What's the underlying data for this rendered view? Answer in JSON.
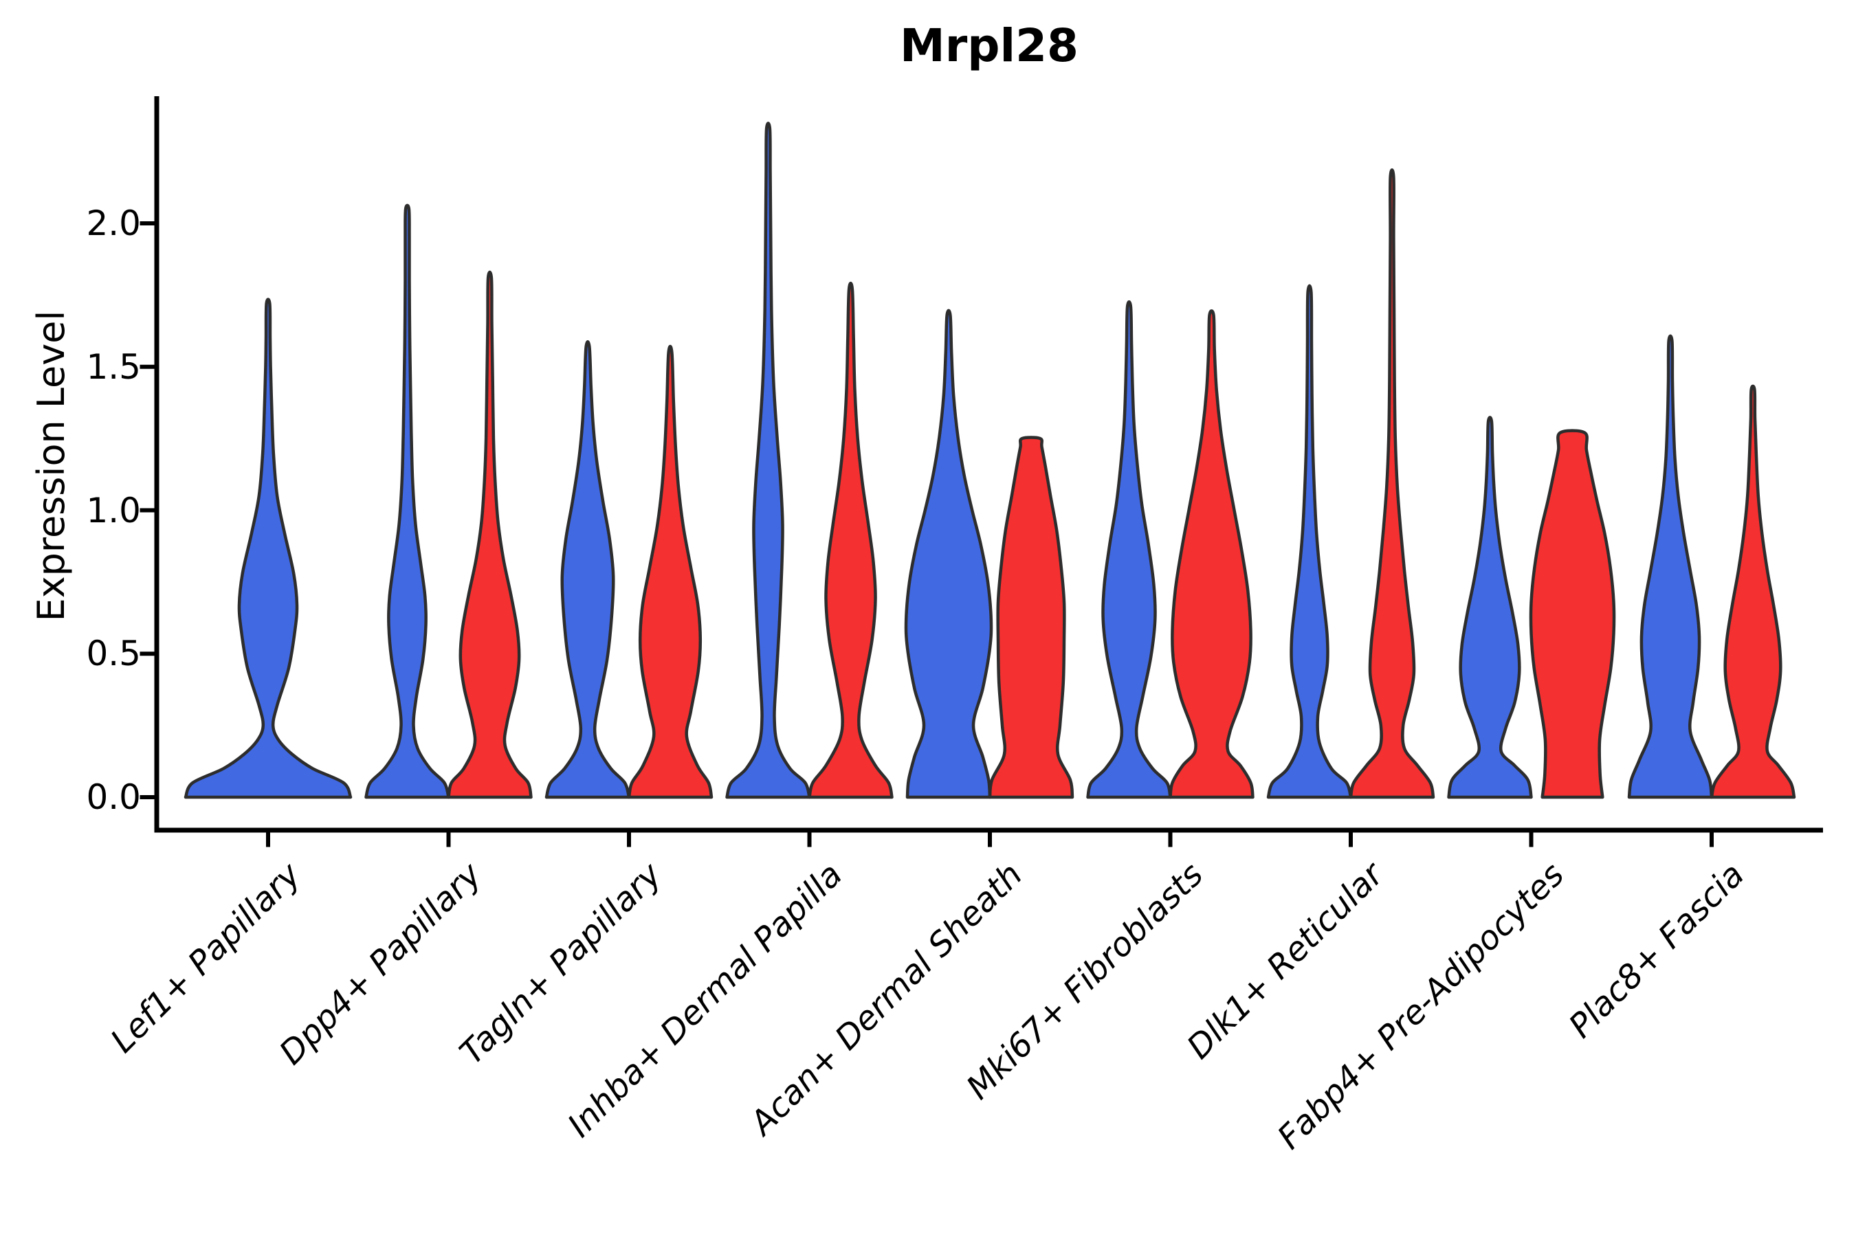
{
  "title": "Mrpl28",
  "y_axis": {
    "label": "Expression Level",
    "ticks": [
      "0.0",
      "0.5",
      "1.0",
      "1.5",
      "2.0"
    ],
    "tick_values": [
      0.0,
      0.5,
      1.0,
      1.5,
      2.0
    ]
  },
  "colors": {
    "blue_fill": "#4169E1",
    "red_fill": "#F43030",
    "edge": "#2D2D2D",
    "axis": "#000000"
  },
  "chart_data": {
    "type": "violin",
    "title": "Mrpl28",
    "xlabel": "",
    "ylabel": "Expression Level",
    "ylim": [
      0,
      2.45
    ],
    "grid": false,
    "legend": "none",
    "categories": [
      "Lef1+ Papillary",
      "Dpp4+ Papillary",
      "Tagln+ Papillary",
      "Inhba+ Dermal Papilla",
      "Acan+ Dermal Sheath",
      "Mki67+ Fibroblasts",
      "Dlk1+ Reticular",
      "Fabp4+ Pre-Adipocytes",
      "Plac8+ Fascia"
    ],
    "series": [
      {
        "name": "blue",
        "color": "#4169E1"
      },
      {
        "name": "red",
        "color": "#F43030"
      }
    ],
    "violins": [
      {
        "category": "Lef1+ Papillary",
        "group": "blue",
        "position": "center",
        "max_expression": 1.72,
        "profile": [
          [
            0,
            2.0
          ],
          [
            0.05,
            1.83
          ],
          [
            0.1,
            1.08
          ],
          [
            0.15,
            0.58
          ],
          [
            0.2,
            0.25
          ],
          [
            0.25,
            0.12
          ],
          [
            0.32,
            0.22
          ],
          [
            0.45,
            0.5
          ],
          [
            0.58,
            0.65
          ],
          [
            0.67,
            0.7
          ],
          [
            0.78,
            0.62
          ],
          [
            0.92,
            0.4
          ],
          [
            1.05,
            0.22
          ],
          [
            1.2,
            0.13
          ],
          [
            1.35,
            0.09
          ],
          [
            1.5,
            0.06
          ],
          [
            1.6,
            0.05
          ],
          [
            1.72,
            0.04
          ]
        ]
      },
      {
        "category": "Dpp4+ Papillary",
        "group": "blue",
        "position": "left",
        "max_expression": 2.05,
        "profile": [
          [
            0,
            1.0
          ],
          [
            0.05,
            0.9
          ],
          [
            0.1,
            0.55
          ],
          [
            0.17,
            0.25
          ],
          [
            0.25,
            0.15
          ],
          [
            0.35,
            0.22
          ],
          [
            0.48,
            0.38
          ],
          [
            0.6,
            0.45
          ],
          [
            0.7,
            0.43
          ],
          [
            0.82,
            0.32
          ],
          [
            0.95,
            0.2
          ],
          [
            1.1,
            0.13
          ],
          [
            1.25,
            0.1
          ],
          [
            1.41,
            0.08
          ],
          [
            1.6,
            0.06
          ],
          [
            1.8,
            0.05
          ],
          [
            1.95,
            0.05
          ],
          [
            2.05,
            0.04
          ]
        ]
      },
      {
        "category": "Dpp4+ Papillary",
        "group": "red",
        "position": "right",
        "max_expression": 1.81,
        "profile": [
          [
            0,
            1.0
          ],
          [
            0.05,
            0.93
          ],
          [
            0.1,
            0.63
          ],
          [
            0.18,
            0.37
          ],
          [
            0.26,
            0.42
          ],
          [
            0.38,
            0.62
          ],
          [
            0.48,
            0.71
          ],
          [
            0.58,
            0.67
          ],
          [
            0.7,
            0.52
          ],
          [
            0.83,
            0.33
          ],
          [
            0.96,
            0.2
          ],
          [
            1.1,
            0.13
          ],
          [
            1.25,
            0.09
          ],
          [
            1.45,
            0.07
          ],
          [
            1.65,
            0.05
          ],
          [
            1.81,
            0.04
          ]
        ]
      },
      {
        "category": "Tagln+ Papillary",
        "group": "blue",
        "position": "left",
        "max_expression": 1.57,
        "profile": [
          [
            0,
            1.0
          ],
          [
            0.05,
            0.9
          ],
          [
            0.1,
            0.56
          ],
          [
            0.17,
            0.26
          ],
          [
            0.24,
            0.17
          ],
          [
            0.34,
            0.28
          ],
          [
            0.48,
            0.47
          ],
          [
            0.63,
            0.58
          ],
          [
            0.77,
            0.62
          ],
          [
            0.9,
            0.53
          ],
          [
            1.03,
            0.37
          ],
          [
            1.17,
            0.22
          ],
          [
            1.3,
            0.13
          ],
          [
            1.43,
            0.08
          ],
          [
            1.57,
            0.04
          ]
        ]
      },
      {
        "category": "Tagln+ Papillary",
        "group": "red",
        "position": "right",
        "max_expression": 1.55,
        "profile": [
          [
            0,
            1.0
          ],
          [
            0.05,
            0.93
          ],
          [
            0.11,
            0.66
          ],
          [
            0.21,
            0.4
          ],
          [
            0.3,
            0.5
          ],
          [
            0.44,
            0.68
          ],
          [
            0.55,
            0.73
          ],
          [
            0.67,
            0.67
          ],
          [
            0.8,
            0.5
          ],
          [
            0.94,
            0.32
          ],
          [
            1.08,
            0.2
          ],
          [
            1.22,
            0.13
          ],
          [
            1.38,
            0.08
          ],
          [
            1.55,
            0.04
          ]
        ]
      },
      {
        "category": "Inhba+ Dermal Papilla",
        "group": "blue",
        "position": "left",
        "max_expression": 2.33,
        "profile": [
          [
            0,
            1.0
          ],
          [
            0.05,
            0.9
          ],
          [
            0.1,
            0.53
          ],
          [
            0.18,
            0.23
          ],
          [
            0.28,
            0.15
          ],
          [
            0.42,
            0.2
          ],
          [
            0.6,
            0.27
          ],
          [
            0.8,
            0.33
          ],
          [
            0.95,
            0.35
          ],
          [
            1.1,
            0.3
          ],
          [
            1.25,
            0.22
          ],
          [
            1.45,
            0.13
          ],
          [
            1.7,
            0.08
          ],
          [
            2.0,
            0.06
          ],
          [
            2.18,
            0.05
          ],
          [
            2.33,
            0.04
          ]
        ]
      },
      {
        "category": "Inhba+ Dermal Papilla",
        "group": "red",
        "position": "right",
        "max_expression": 1.77,
        "profile": [
          [
            0,
            1.0
          ],
          [
            0.05,
            0.92
          ],
          [
            0.11,
            0.6
          ],
          [
            0.2,
            0.27
          ],
          [
            0.28,
            0.2
          ],
          [
            0.4,
            0.33
          ],
          [
            0.55,
            0.52
          ],
          [
            0.69,
            0.6
          ],
          [
            0.82,
            0.55
          ],
          [
            0.95,
            0.43
          ],
          [
            1.1,
            0.28
          ],
          [
            1.25,
            0.17
          ],
          [
            1.42,
            0.1
          ],
          [
            1.6,
            0.07
          ],
          [
            1.77,
            0.04
          ]
        ]
      },
      {
        "category": "Acan+ Dermal Sheath",
        "group": "blue",
        "position": "left",
        "max_expression": 1.68,
        "profile": [
          [
            0,
            1.0
          ],
          [
            0.06,
            0.97
          ],
          [
            0.14,
            0.83
          ],
          [
            0.25,
            0.6
          ],
          [
            0.38,
            0.83
          ],
          [
            0.52,
            1.0
          ],
          [
            0.62,
            1.03
          ],
          [
            0.75,
            0.95
          ],
          [
            0.88,
            0.78
          ],
          [
            1.0,
            0.57
          ],
          [
            1.12,
            0.38
          ],
          [
            1.25,
            0.23
          ],
          [
            1.4,
            0.12
          ],
          [
            1.55,
            0.07
          ],
          [
            1.68,
            0.04
          ]
        ]
      },
      {
        "category": "Acan+ Dermal Sheath",
        "group": "red",
        "position": "right",
        "max_expression": 1.25,
        "flat_top": true,
        "profile": [
          [
            0,
            1.0
          ],
          [
            0.06,
            0.95
          ],
          [
            0.15,
            0.65
          ],
          [
            0.25,
            0.7
          ],
          [
            0.4,
            0.78
          ],
          [
            0.55,
            0.8
          ],
          [
            0.68,
            0.8
          ],
          [
            0.8,
            0.73
          ],
          [
            0.93,
            0.62
          ],
          [
            1.05,
            0.47
          ],
          [
            1.15,
            0.35
          ],
          [
            1.22,
            0.26
          ],
          [
            1.25,
            0.22
          ]
        ]
      },
      {
        "category": "Mki67+ Fibroblasts",
        "group": "blue",
        "position": "left",
        "max_expression": 1.71,
        "profile": [
          [
            0,
            1.0
          ],
          [
            0.05,
            0.92
          ],
          [
            0.1,
            0.57
          ],
          [
            0.17,
            0.26
          ],
          [
            0.24,
            0.18
          ],
          [
            0.35,
            0.33
          ],
          [
            0.49,
            0.53
          ],
          [
            0.62,
            0.63
          ],
          [
            0.74,
            0.6
          ],
          [
            0.88,
            0.47
          ],
          [
            1.02,
            0.31
          ],
          [
            1.16,
            0.2
          ],
          [
            1.3,
            0.12
          ],
          [
            1.45,
            0.08
          ],
          [
            1.58,
            0.06
          ],
          [
            1.71,
            0.04
          ]
        ]
      },
      {
        "category": "Mki67+ Fibroblasts",
        "group": "red",
        "position": "right",
        "max_expression": 1.68,
        "profile": [
          [
            0,
            1.0
          ],
          [
            0.05,
            0.95
          ],
          [
            0.11,
            0.7
          ],
          [
            0.16,
            0.4
          ],
          [
            0.23,
            0.45
          ],
          [
            0.35,
            0.75
          ],
          [
            0.47,
            0.92
          ],
          [
            0.58,
            0.95
          ],
          [
            0.72,
            0.88
          ],
          [
            0.86,
            0.73
          ],
          [
            1.0,
            0.55
          ],
          [
            1.14,
            0.37
          ],
          [
            1.28,
            0.22
          ],
          [
            1.42,
            0.12
          ],
          [
            1.56,
            0.07
          ],
          [
            1.68,
            0.05
          ]
        ]
      },
      {
        "category": "Dlk1+ Reticular",
        "group": "blue",
        "position": "left",
        "max_expression": 1.76,
        "profile": [
          [
            0,
            1.0
          ],
          [
            0.05,
            0.9
          ],
          [
            0.1,
            0.53
          ],
          [
            0.19,
            0.24
          ],
          [
            0.28,
            0.2
          ],
          [
            0.37,
            0.32
          ],
          [
            0.46,
            0.43
          ],
          [
            0.56,
            0.43
          ],
          [
            0.67,
            0.35
          ],
          [
            0.79,
            0.25
          ],
          [
            0.92,
            0.17
          ],
          [
            1.06,
            0.12
          ],
          [
            1.22,
            0.08
          ],
          [
            1.4,
            0.06
          ],
          [
            1.58,
            0.05
          ],
          [
            1.76,
            0.04
          ]
        ]
      },
      {
        "category": "Dlk1+ Reticular",
        "group": "red",
        "position": "right",
        "max_expression": 2.16,
        "profile": [
          [
            0,
            1.0
          ],
          [
            0.05,
            0.93
          ],
          [
            0.11,
            0.62
          ],
          [
            0.17,
            0.3
          ],
          [
            0.25,
            0.27
          ],
          [
            0.34,
            0.42
          ],
          [
            0.43,
            0.53
          ],
          [
            0.54,
            0.5
          ],
          [
            0.66,
            0.4
          ],
          [
            0.79,
            0.3
          ],
          [
            0.93,
            0.21
          ],
          [
            1.08,
            0.13
          ],
          [
            1.25,
            0.08
          ],
          [
            1.45,
            0.06
          ],
          [
            1.7,
            0.05
          ],
          [
            1.95,
            0.04
          ],
          [
            2.16,
            0.04
          ]
        ]
      },
      {
        "category": "Fabp4+ Pre-Adipocytes",
        "group": "blue",
        "position": "left",
        "max_expression": 1.31,
        "profile": [
          [
            0,
            1.0
          ],
          [
            0.06,
            0.92
          ],
          [
            0.11,
            0.6
          ],
          [
            0.16,
            0.27
          ],
          [
            0.24,
            0.38
          ],
          [
            0.33,
            0.6
          ],
          [
            0.43,
            0.71
          ],
          [
            0.53,
            0.68
          ],
          [
            0.64,
            0.55
          ],
          [
            0.76,
            0.38
          ],
          [
            0.88,
            0.24
          ],
          [
            1.0,
            0.14
          ],
          [
            1.1,
            0.09
          ],
          [
            1.2,
            0.06
          ],
          [
            1.31,
            0.04
          ]
        ]
      },
      {
        "category": "Fabp4+ Pre-Adipocytes",
        "group": "red",
        "position": "right",
        "max_expression": 1.27,
        "flat_top": true,
        "profile": [
          [
            0,
            0.73
          ],
          [
            0.08,
            0.67
          ],
          [
            0.2,
            0.66
          ],
          [
            0.32,
            0.78
          ],
          [
            0.45,
            0.93
          ],
          [
            0.57,
            1.0
          ],
          [
            0.68,
            1.0
          ],
          [
            0.8,
            0.92
          ],
          [
            0.92,
            0.78
          ],
          [
            1.03,
            0.6
          ],
          [
            1.13,
            0.45
          ],
          [
            1.21,
            0.34
          ],
          [
            1.27,
            0.3
          ]
        ]
      },
      {
        "category": "Plac8+ Fascia",
        "group": "blue",
        "position": "left",
        "max_expression": 1.59,
        "profile": [
          [
            0,
            1.0
          ],
          [
            0.06,
            0.95
          ],
          [
            0.13,
            0.75
          ],
          [
            0.23,
            0.48
          ],
          [
            0.33,
            0.55
          ],
          [
            0.45,
            0.67
          ],
          [
            0.56,
            0.7
          ],
          [
            0.67,
            0.63
          ],
          [
            0.79,
            0.48
          ],
          [
            0.92,
            0.32
          ],
          [
            1.05,
            0.19
          ],
          [
            1.18,
            0.11
          ],
          [
            1.32,
            0.07
          ],
          [
            1.45,
            0.05
          ],
          [
            1.59,
            0.04
          ]
        ]
      },
      {
        "category": "Plac8+ Fascia",
        "group": "red",
        "position": "right",
        "max_expression": 1.42,
        "profile": [
          [
            0,
            1.0
          ],
          [
            0.05,
            0.92
          ],
          [
            0.11,
            0.62
          ],
          [
            0.16,
            0.35
          ],
          [
            0.24,
            0.42
          ],
          [
            0.34,
            0.58
          ],
          [
            0.44,
            0.67
          ],
          [
            0.55,
            0.63
          ],
          [
            0.67,
            0.5
          ],
          [
            0.79,
            0.35
          ],
          [
            0.92,
            0.22
          ],
          [
            1.05,
            0.13
          ],
          [
            1.2,
            0.08
          ],
          [
            1.32,
            0.05
          ],
          [
            1.42,
            0.04
          ]
        ]
      }
    ]
  }
}
